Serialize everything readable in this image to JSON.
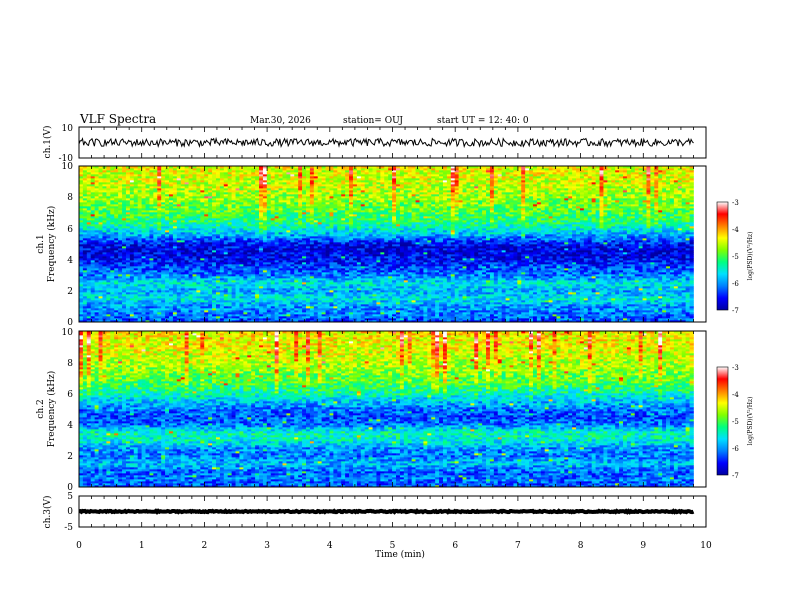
{
  "header": {
    "title": "VLF Spectra",
    "date": "Mar.30, 2026",
    "station": "station= OUJ",
    "start_time": "start  UT =   12: 40: 0"
  },
  "colors": {
    "colormap": [
      "#0000a0",
      "#0000ff",
      "#0080ff",
      "#00e0ff",
      "#00ff80",
      "#80ff00",
      "#ffff00",
      "#ff8000",
      "#ff0000",
      "#ffffff"
    ]
  },
  "chart_data": [
    {
      "id": "ch1-waveform",
      "type": "line",
      "ylabel": "ch.1(V)",
      "ylim": [
        -10,
        10
      ],
      "yticks": [
        "10",
        "-10"
      ],
      "xlim": [
        0,
        10
      ],
      "signal": {
        "center": 0,
        "amplitude": 2.5,
        "end_min": 9.8
      }
    },
    {
      "id": "ch1-spectrogram",
      "type": "heatmap",
      "ylabel": "ch.1\nFrequency (kHz)",
      "ylim": [
        0,
        10
      ],
      "yticks": [
        "0",
        "2",
        "4",
        "6",
        "8",
        "10"
      ],
      "xlim": [
        0,
        10
      ],
      "data_end_min": 9.8,
      "log_psd_profile": {
        "freq_khz": [
          0.0,
          0.5,
          1.0,
          1.5,
          2.0,
          2.5,
          3.0,
          3.5,
          4.0,
          4.5,
          5.0,
          5.5,
          6.0,
          6.5,
          7.0,
          8.0,
          9.0,
          10.0
        ],
        "value": [
          -6.3,
          -6.1,
          -6.0,
          -5.6,
          -5.9,
          -5.6,
          -6.1,
          -6.3,
          -6.6,
          -6.7,
          -6.6,
          -6.0,
          -5.5,
          -5.2,
          -5.0,
          -4.7,
          -4.5,
          -4.4
        ]
      },
      "colorbar": {
        "label": "log(PSD)(V²/Hz)",
        "ticks": [
          "-3",
          "-4",
          "-5",
          "-6",
          "-7"
        ],
        "range": [
          -7,
          -3
        ]
      }
    },
    {
      "id": "ch2-spectrogram",
      "type": "heatmap",
      "ylabel": "ch.2\nFrequency (kHz)",
      "ylim": [
        0,
        10
      ],
      "yticks": [
        "0",
        "2",
        "4",
        "6",
        "8",
        "10"
      ],
      "xlim": [
        0,
        10
      ],
      "data_end_min": 9.8,
      "log_psd_profile": {
        "freq_khz": [
          0.0,
          0.5,
          1.0,
          1.5,
          2.0,
          2.5,
          3.0,
          3.5,
          4.0,
          4.5,
          5.0,
          5.5,
          6.0,
          6.5,
          7.0,
          8.0,
          9.0,
          10.0
        ],
        "value": [
          -6.3,
          -6.1,
          -6.2,
          -5.8,
          -6.1,
          -6.0,
          -5.5,
          -5.4,
          -6.1,
          -6.3,
          -6.1,
          -5.8,
          -5.4,
          -5.1,
          -4.9,
          -4.6,
          -4.4,
          -4.3
        ]
      },
      "colorbar": {
        "label": "log(PSD)(V²/Hz)",
        "ticks": [
          "-3",
          "-4",
          "-5",
          "-6",
          "-7"
        ],
        "range": [
          -7,
          -3
        ]
      }
    },
    {
      "id": "ch3-waveform",
      "type": "line",
      "ylabel": "ch.3(V)",
      "ylim": [
        -5,
        5
      ],
      "yticks": [
        "5",
        "0",
        "-5"
      ],
      "xlim": [
        0,
        10
      ],
      "xlabel": "Time (min)",
      "xticks": [
        "0",
        "1",
        "2",
        "3",
        "4",
        "5",
        "6",
        "7",
        "8",
        "9",
        "10"
      ],
      "signal": {
        "center": 0,
        "amplitude": 0.2,
        "end_min": 9.8
      }
    }
  ]
}
